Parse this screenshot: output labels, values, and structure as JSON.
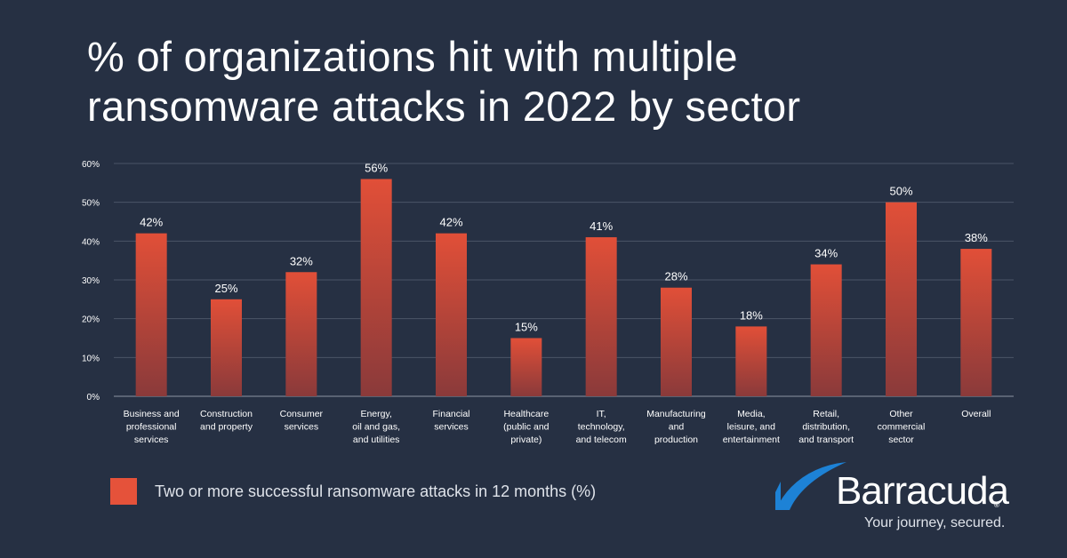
{
  "title_line1": "% of organizations hit with multiple",
  "title_line2": "ransomware attacks in 2022 by sector",
  "chart_data": {
    "type": "bar",
    "title": "% of organizations hit with multiple ransomware attacks in 2022 by sector",
    "categories": [
      [
        "Business and",
        "professional",
        "services"
      ],
      [
        "Construction",
        "and property"
      ],
      [
        "Consumer",
        "services"
      ],
      [
        "Energy,",
        "oil and gas,",
        "and utilities"
      ],
      [
        "Financial",
        "services"
      ],
      [
        "Healthcare",
        "(public and",
        "private)"
      ],
      [
        "IT,",
        "technology,",
        "and telecom"
      ],
      [
        "Manufacturing",
        "and",
        "production"
      ],
      [
        "Media,",
        "leisure, and",
        "entertainment"
      ],
      [
        "Retail,",
        "distribution,",
        "and transport"
      ],
      [
        "Other",
        "commercial",
        "sector"
      ],
      [
        "Overall"
      ]
    ],
    "series": [
      {
        "name": "Two or more successful ransomware attacks in 12 months (%)",
        "values": [
          42,
          25,
          32,
          56,
          42,
          15,
          41,
          28,
          18,
          34,
          50,
          38
        ]
      }
    ],
    "value_suffix": "%",
    "ylim": [
      0,
      60
    ],
    "yticks": [
      0,
      10,
      20,
      30,
      40,
      50,
      60
    ],
    "ytick_labels": [
      "0%",
      "10%",
      "20%",
      "30%",
      "40%",
      "50%",
      "60%"
    ],
    "grid": true,
    "legend_position": "bottom-left",
    "colors": {
      "bar_top": "#e14f38",
      "bar_bottom": "#8a3a3a",
      "grid": "#4b5467",
      "axis": "#8c93a3",
      "text": "#ffffff"
    }
  },
  "legend": {
    "label": "Two or more successful ransomware attacks in 12 months (%)",
    "color": "#e5523a"
  },
  "brand": {
    "name": "Barracuda",
    "registered": "®",
    "tagline": "Your journey, secured.",
    "logo_icon": "barracuda-fin-icon",
    "logo_color": "#1d82d6"
  }
}
